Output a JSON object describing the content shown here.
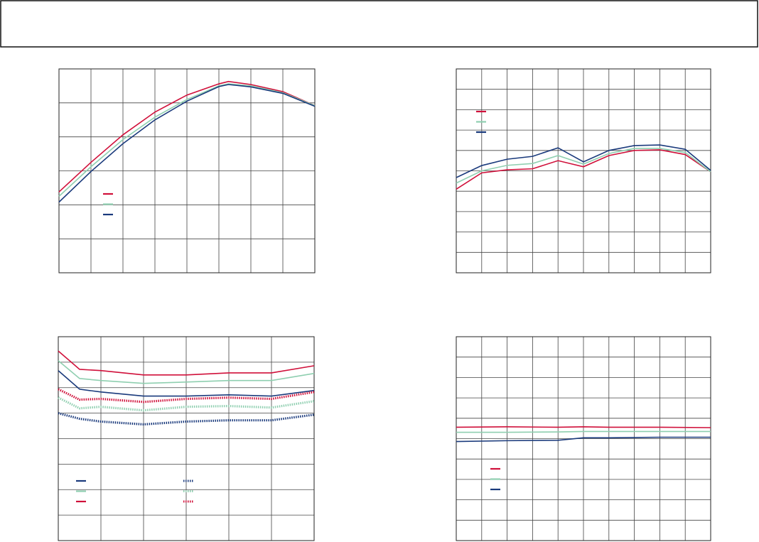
{
  "chart_data": [
    {
      "type": "line",
      "x": [
        0,
        1,
        2,
        3,
        4,
        5,
        5.3,
        6,
        7,
        8
      ],
      "xlim": [
        0,
        8
      ],
      "ylim": [
        0,
        6
      ],
      "xticks": [
        0,
        1,
        2,
        3,
        4,
        5,
        6,
        7,
        8
      ],
      "yticks": [
        0,
        1,
        2,
        3,
        4,
        5,
        6
      ],
      "grid": true,
      "legend": "lower-left",
      "series": [
        {
          "color": "#d0103a",
          "values": [
            2.38,
            3.25,
            4.06,
            4.73,
            5.23,
            5.56,
            5.63,
            5.54,
            5.33,
            4.92
          ]
        },
        {
          "color": "#8fcfb0",
          "values": [
            2.25,
            3.12,
            3.92,
            4.58,
            5.1,
            5.5,
            5.56,
            5.5,
            5.3,
            4.92
          ]
        },
        {
          "color": "#1a3a7c",
          "values": [
            2.08,
            2.98,
            3.8,
            4.5,
            5.05,
            5.48,
            5.54,
            5.47,
            5.28,
            4.9
          ]
        }
      ]
    },
    {
      "type": "line",
      "x": [
        0,
        1,
        2,
        3,
        4,
        5,
        6,
        7,
        8,
        9,
        10
      ],
      "xlim": [
        0,
        10
      ],
      "ylim": [
        0,
        10
      ],
      "xticks": [
        0,
        1,
        2,
        3,
        4,
        5,
        6,
        7,
        8,
        9,
        10
      ],
      "yticks": [
        0,
        1,
        2,
        3,
        4,
        5,
        6,
        7,
        8,
        9,
        10
      ],
      "grid": true,
      "legend": "upper-left",
      "series": [
        {
          "color": "#d0103a",
          "values": [
            4.1,
            4.9,
            5.05,
            5.1,
            5.5,
            5.2,
            5.75,
            6.0,
            6.03,
            5.8,
            4.95
          ]
        },
        {
          "color": "#8fcfb0",
          "values": [
            4.4,
            5.0,
            5.27,
            5.36,
            5.75,
            5.33,
            5.85,
            6.1,
            6.1,
            5.9,
            4.95
          ]
        },
        {
          "color": "#1a3a7c",
          "values": [
            4.67,
            5.26,
            5.57,
            5.71,
            6.13,
            5.44,
            6.0,
            6.24,
            6.27,
            6.06,
            5.02
          ]
        }
      ]
    },
    {
      "type": "line",
      "x": [
        0,
        0.5,
        1,
        2,
        3,
        4,
        5,
        6
      ],
      "xlim": [
        0,
        6
      ],
      "ylim": [
        0,
        8
      ],
      "xticks": [
        0,
        1,
        2,
        3,
        4,
        5,
        6
      ],
      "yticks": [
        0,
        1,
        2,
        3,
        4,
        5,
        6,
        7,
        8
      ],
      "grid": true,
      "legend": "lower-left",
      "legend_columns": 2,
      "series": [
        {
          "color": "#1a3a7c",
          "dash": "solid",
          "values": [
            6.67,
            5.94,
            5.83,
            5.67,
            5.67,
            5.72,
            5.67,
            5.89
          ]
        },
        {
          "color": "#8fcfb0",
          "dash": "solid",
          "values": [
            7.06,
            6.36,
            6.28,
            6.17,
            6.22,
            6.28,
            6.28,
            6.56
          ]
        },
        {
          "color": "#d0103a",
          "dash": "solid",
          "values": [
            7.44,
            6.72,
            6.67,
            6.5,
            6.5,
            6.58,
            6.58,
            6.86
          ]
        },
        {
          "color": "#1a3a7c",
          "dash": "dotted",
          "values": [
            5.0,
            4.78,
            4.67,
            4.56,
            4.67,
            4.72,
            4.72,
            4.94
          ]
        },
        {
          "color": "#8fcfb0",
          "dash": "dotted",
          "values": [
            5.61,
            5.19,
            5.25,
            5.11,
            5.25,
            5.28,
            5.22,
            5.47
          ]
        },
        {
          "color": "#d0103a",
          "dash": "dotted",
          "values": [
            5.94,
            5.53,
            5.56,
            5.44,
            5.56,
            5.61,
            5.56,
            5.83
          ]
        }
      ]
    },
    {
      "type": "line",
      "x": [
        0,
        2,
        4,
        5,
        6,
        8,
        10
      ],
      "xlim": [
        0,
        10
      ],
      "ylim": [
        0,
        10
      ],
      "xticks": [
        0,
        1,
        2,
        3,
        4,
        5,
        6,
        7,
        8,
        9,
        10
      ],
      "yticks": [
        0,
        1,
        2,
        3,
        4,
        5,
        6,
        7,
        8,
        9,
        10
      ],
      "grid": true,
      "legend": "lower-left",
      "series": [
        {
          "color": "#d0103a",
          "values": [
            5.56,
            5.58,
            5.56,
            5.58,
            5.56,
            5.56,
            5.54
          ]
        },
        {
          "color": "#8fcfb0",
          "values": [
            5.31,
            5.31,
            5.33,
            5.35,
            5.35,
            5.35,
            5.35
          ]
        },
        {
          "color": "#1a3a7c",
          "values": [
            4.86,
            4.9,
            4.92,
            5.04,
            5.04,
            5.07,
            5.07
          ]
        }
      ]
    }
  ]
}
